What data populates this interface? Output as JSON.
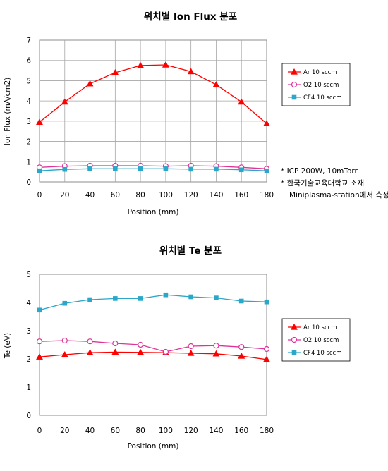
{
  "chart_data": [
    {
      "type": "line",
      "title": "위치별 Ion Flux 분포",
      "xlabel": "Position (mm)",
      "ylabel": "Ion Flux (mA/cm2)",
      "x": [
        0,
        20,
        40,
        60,
        80,
        100,
        120,
        140,
        160,
        180
      ],
      "xlim": [
        0,
        180
      ],
      "ylim": [
        0,
        7
      ],
      "xticks": [
        0,
        20,
        40,
        60,
        80,
        100,
        120,
        140,
        160,
        180
      ],
      "yticks": [
        0,
        1,
        2,
        3,
        4,
        5,
        6,
        7
      ],
      "grid": true,
      "legend_position": "right",
      "series": [
        {
          "name": "Ar 10 sccm",
          "color": "#ff0000",
          "marker": "triangle",
          "values": [
            2.95,
            3.95,
            4.85,
            5.4,
            5.75,
            5.78,
            5.45,
            4.8,
            3.95,
            2.88
          ]
        },
        {
          "name": "O2 10 sccm",
          "color": "#e0339a",
          "marker": "circle",
          "values": [
            0.72,
            0.78,
            0.8,
            0.8,
            0.8,
            0.78,
            0.8,
            0.78,
            0.72,
            0.65
          ]
        },
        {
          "name": "CF4 10 sccm",
          "color": "#2aa7c9",
          "marker": "square",
          "values": [
            0.55,
            0.62,
            0.65,
            0.65,
            0.65,
            0.65,
            0.63,
            0.63,
            0.6,
            0.55
          ]
        }
      ],
      "notes": [
        "*  ICP 200W, 10mTorr",
        "* 한국기술교육대학교 소재",
        "Miniplasma-station에서 측정"
      ]
    },
    {
      "type": "line",
      "title": "위치별 Te 분포",
      "xlabel": "Position (mm)",
      "ylabel": "Te (eV)",
      "x": [
        0,
        20,
        40,
        60,
        80,
        100,
        120,
        140,
        160,
        180
      ],
      "xlim": [
        0,
        180
      ],
      "ylim": [
        0,
        5
      ],
      "xticks": [
        0,
        20,
        40,
        60,
        80,
        100,
        120,
        140,
        160,
        180
      ],
      "yticks": [
        0,
        1,
        2,
        3,
        4,
        5
      ],
      "grid": false,
      "legend_position": "right",
      "series": [
        {
          "name": "Ar 10 sccm",
          "color": "#ff0000",
          "marker": "triangle",
          "values": [
            2.07,
            2.15,
            2.22,
            2.24,
            2.23,
            2.22,
            2.2,
            2.18,
            2.1,
            1.98
          ]
        },
        {
          "name": "O2 10 sccm",
          "color": "#e0339a",
          "marker": "circle",
          "values": [
            2.62,
            2.65,
            2.62,
            2.55,
            2.5,
            2.25,
            2.45,
            2.47,
            2.42,
            2.35
          ]
        },
        {
          "name": "CF4 10 sccm",
          "color": "#2aa7c9",
          "marker": "square",
          "values": [
            3.73,
            3.97,
            4.1,
            4.14,
            4.14,
            4.27,
            4.2,
            4.16,
            4.05,
            4.02
          ]
        }
      ]
    }
  ]
}
